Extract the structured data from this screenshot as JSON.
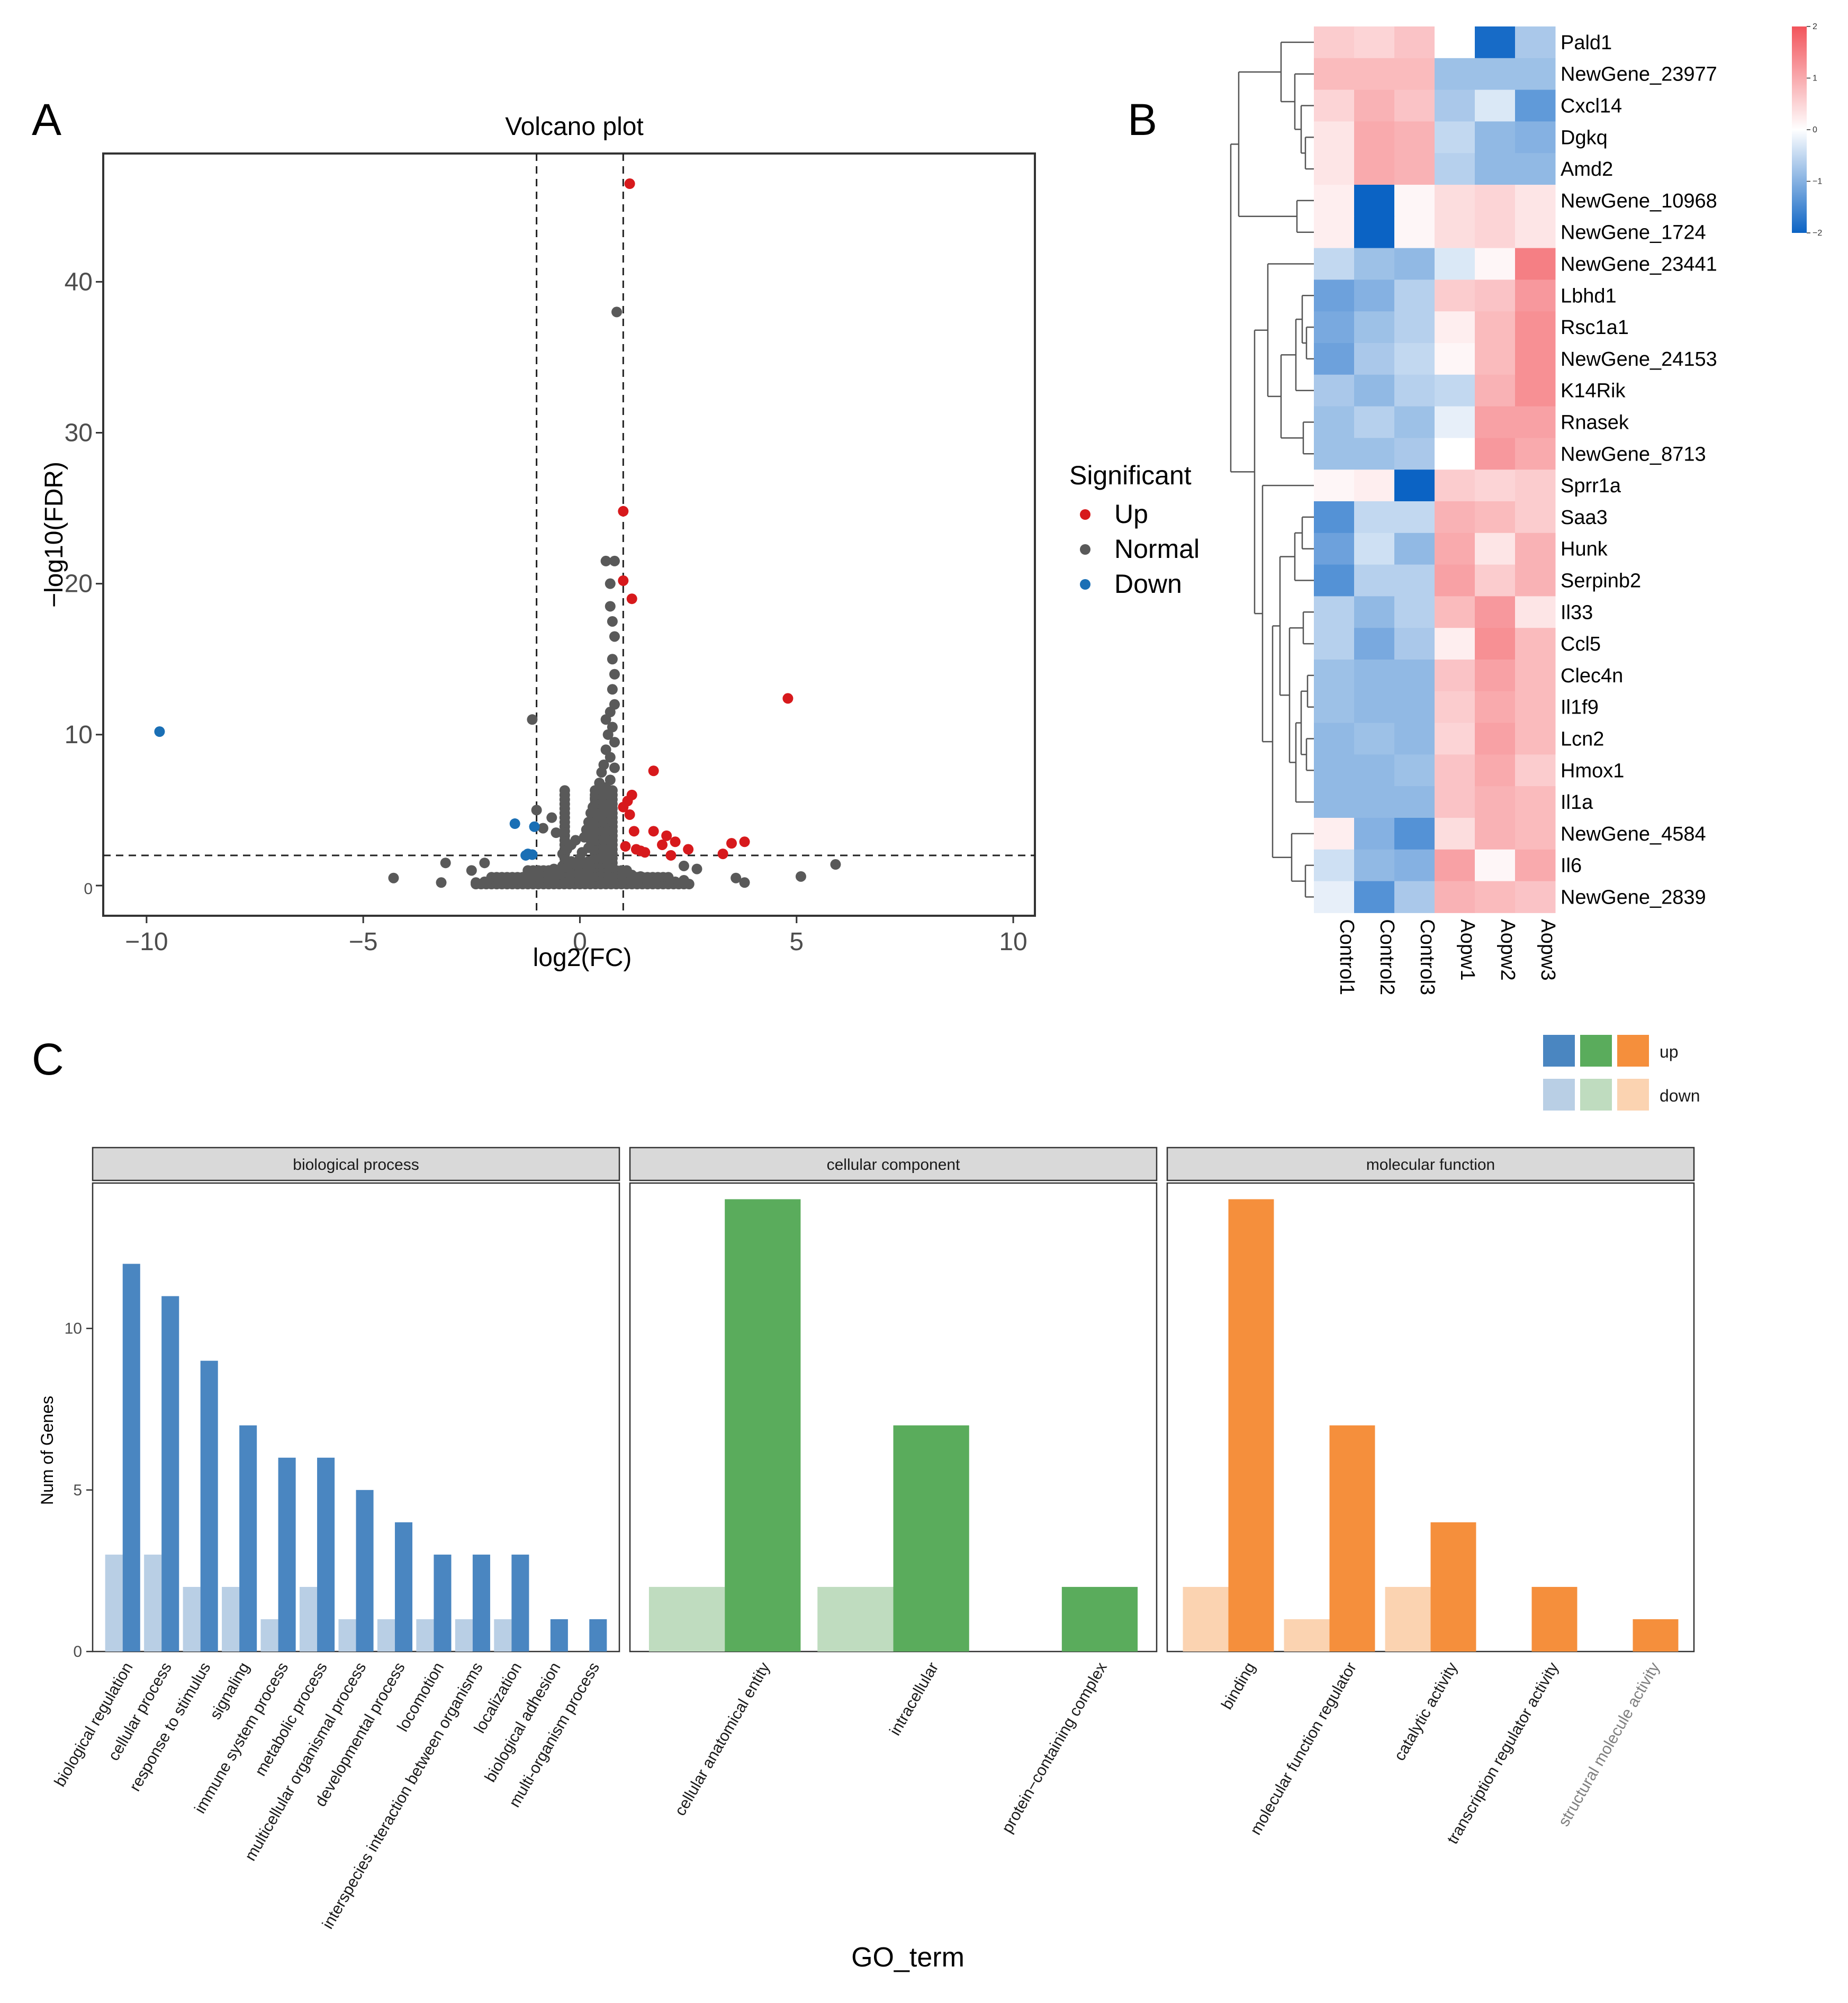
{
  "panels": {
    "a": "A",
    "b": "B",
    "c": "C"
  },
  "chart_data": [
    {
      "type": "scatter",
      "id": "volcano",
      "title": "Volcano plot",
      "xlabel": "log2(FC)",
      "ylabel": "−log10(FDR)",
      "xlim": [
        -11,
        10.5
      ],
      "ylim": [
        -2,
        48.5
      ],
      "xticks": [
        -10,
        -5,
        0,
        5,
        10
      ],
      "xtick_labels": [
        "−10",
        "−5",
        "0",
        "5",
        "10"
      ],
      "yticks": [
        0,
        10,
        20,
        30,
        40
      ],
      "ytick_labels": [
        "0",
        "10",
        "20",
        "30",
        "40"
      ],
      "vlines": [
        -1,
        1
      ],
      "hline": 2,
      "legend": {
        "title": "Significant",
        "position": "right",
        "entries": [
          {
            "label": "Up",
            "color": "#d7191c"
          },
          {
            "label": "Normal",
            "color": "#595959"
          },
          {
            "label": "Down",
            "color": "#1a6fb5"
          }
        ]
      },
      "series": [
        {
          "name": "Up",
          "color": "#d7191c",
          "points": [
            [
              1.15,
              46.5
            ],
            [
              1.0,
              24.8
            ],
            [
              1.0,
              20.2
            ],
            [
              1.2,
              19.0
            ],
            [
              4.8,
              12.4
            ],
            [
              1.7,
              7.6
            ],
            [
              1.2,
              6.0
            ],
            [
              1.1,
              5.6
            ],
            [
              1.0,
              5.2
            ],
            [
              1.15,
              4.7
            ],
            [
              1.25,
              3.6
            ],
            [
              1.7,
              3.6
            ],
            [
              2.0,
              3.3
            ],
            [
              2.2,
              2.9
            ],
            [
              2.5,
              2.4
            ],
            [
              1.9,
              2.7
            ],
            [
              3.5,
              2.8
            ],
            [
              3.8,
              2.9
            ],
            [
              1.3,
              2.4
            ],
            [
              1.5,
              2.2
            ],
            [
              3.3,
              2.1
            ],
            [
              2.1,
              2.0
            ],
            [
              1.05,
              2.6
            ],
            [
              1.4,
              2.3
            ]
          ]
        },
        {
          "name": "Normal",
          "color": "#595959",
          "points": [
            [
              0.85,
              38.0
            ],
            [
              0.6,
              21.5
            ],
            [
              0.8,
              21.5
            ],
            [
              0.7,
              20.0
            ],
            [
              0.7,
              18.5
            ],
            [
              0.75,
              17.5
            ],
            [
              0.8,
              16.5
            ],
            [
              0.75,
              15.0
            ],
            [
              0.8,
              14.0
            ],
            [
              0.75,
              13.0
            ],
            [
              0.8,
              12.0
            ],
            [
              0.7,
              11.5
            ],
            [
              0.6,
              11.0
            ],
            [
              0.75,
              10.5
            ],
            [
              0.65,
              10.0
            ],
            [
              0.8,
              9.5
            ],
            [
              0.6,
              9.0
            ],
            [
              0.7,
              8.5
            ],
            [
              0.55,
              8.0
            ],
            [
              0.8,
              7.8
            ],
            [
              0.5,
              7.5
            ],
            [
              0.7,
              7.0
            ],
            [
              0.45,
              6.8
            ],
            [
              0.6,
              6.5
            ],
            [
              0.4,
              6.2
            ],
            [
              0.55,
              6.0
            ],
            [
              0.35,
              5.8
            ],
            [
              0.5,
              5.5
            ],
            [
              0.3,
              5.2
            ],
            [
              0.45,
              5.0
            ],
            [
              0.25,
              4.8
            ],
            [
              0.4,
              4.5
            ],
            [
              0.2,
              4.2
            ],
            [
              0.35,
              4.0
            ],
            [
              0.15,
              3.7
            ],
            [
              0.3,
              3.5
            ],
            [
              0.1,
              3.2
            ],
            [
              0.25,
              3.0
            ],
            [
              -0.1,
              3.0
            ],
            [
              -0.2,
              2.7
            ],
            [
              0.2,
              2.5
            ],
            [
              -0.3,
              2.4
            ],
            [
              0.05,
              2.2
            ],
            [
              -0.4,
              2.1
            ],
            [
              -1.1,
              11.0
            ],
            [
              -1.0,
              5.0
            ],
            [
              -0.65,
              4.5
            ],
            [
              -0.85,
              3.8
            ],
            [
              -0.55,
              3.5
            ],
            [
              0.0,
              1.8
            ],
            [
              0.2,
              1.6
            ],
            [
              0.4,
              1.4
            ],
            [
              0.6,
              1.2
            ],
            [
              0.8,
              1.0
            ],
            [
              1.0,
              0.9
            ],
            [
              1.2,
              0.7
            ],
            [
              1.4,
              0.6
            ],
            [
              1.6,
              0.5
            ],
            [
              1.8,
              0.4
            ],
            [
              2.0,
              0.3
            ],
            [
              2.2,
              0.25
            ],
            [
              2.4,
              0.35
            ],
            [
              -0.2,
              1.6
            ],
            [
              -0.4,
              1.3
            ],
            [
              -0.6,
              1.1
            ],
            [
              -0.8,
              0.9
            ],
            [
              -1.0,
              0.7
            ],
            [
              -1.2,
              0.6
            ],
            [
              -1.4,
              0.5
            ],
            [
              -1.6,
              0.4
            ],
            [
              -1.8,
              0.3
            ],
            [
              -2.0,
              0.3
            ],
            [
              -2.2,
              0.25
            ],
            [
              -2.4,
              0.2
            ],
            [
              0.1,
              0.4
            ],
            [
              0.3,
              0.3
            ],
            [
              0.5,
              0.2
            ],
            [
              -0.1,
              0.5
            ],
            [
              -0.3,
              0.3
            ],
            [
              -0.5,
              0.2
            ],
            [
              -4.3,
              0.5
            ],
            [
              -3.1,
              1.5
            ],
            [
              -3.2,
              0.2
            ],
            [
              -2.5,
              1.0
            ],
            [
              -2.2,
              1.5
            ],
            [
              2.4,
              1.3
            ],
            [
              2.7,
              1.1
            ],
            [
              3.6,
              0.5
            ],
            [
              3.8,
              0.2
            ],
            [
              5.1,
              0.6
            ],
            [
              5.9,
              1.4
            ]
          ]
        },
        {
          "name": "Down",
          "color": "#1a6fb5",
          "points": [
            [
              -9.7,
              10.2
            ],
            [
              -1.5,
              4.1
            ],
            [
              -1.05,
              3.9
            ],
            [
              -1.2,
              2.1
            ],
            [
              -1.25,
              2.0
            ],
            [
              -1.1,
              2.05
            ]
          ]
        }
      ]
    },
    {
      "type": "heatmap",
      "id": "heatmap",
      "rows": [
        "Pald1",
        "NewGene_23977",
        "Cxcl14",
        "Dgkq",
        "Amd2",
        "NewGene_10968",
        "NewGene_1724",
        "NewGene_23441",
        "Lbhd1",
        "Rsc1a1",
        "NewGene_24153",
        "K14Rik",
        "Rnasek",
        "NewGene_8713",
        "Sprr1a",
        "Saa3",
        "Hunk",
        "Serpinb2",
        "Il33",
        "Ccl5",
        "Clec4n",
        "Il1f9",
        "Lcn2",
        "Hmox1",
        "Il1a",
        "NewGene_4584",
        "Il6",
        "NewGene_2839"
      ],
      "columns": [
        "Control1",
        "Control2",
        "Control3",
        "Aopw1",
        "Aopw2",
        "Aopw3"
      ],
      "values": [
        [
          0.6,
          0.5,
          0.7,
          0.0,
          -1.9,
          -0.7
        ],
        [
          0.8,
          0.8,
          0.8,
          -0.8,
          -0.8,
          -0.8
        ],
        [
          0.5,
          0.9,
          0.7,
          -0.7,
          -0.3,
          -1.3
        ],
        [
          0.3,
          1.0,
          0.9,
          -0.5,
          -0.9,
          -1.0
        ],
        [
          0.3,
          1.0,
          0.9,
          -0.6,
          -0.9,
          -0.9
        ],
        [
          0.2,
          -2.0,
          0.1,
          0.4,
          0.5,
          0.3
        ],
        [
          0.2,
          -2.0,
          0.1,
          0.4,
          0.5,
          0.3
        ],
        [
          -0.5,
          -0.8,
          -0.9,
          -0.3,
          0.1,
          1.5
        ],
        [
          -1.2,
          -1.0,
          -0.6,
          0.6,
          0.7,
          1.2
        ],
        [
          -1.1,
          -0.8,
          -0.6,
          0.2,
          0.8,
          1.3
        ],
        [
          -1.2,
          -0.7,
          -0.5,
          0.1,
          0.8,
          1.3
        ],
        [
          -0.7,
          -0.9,
          -0.6,
          -0.5,
          0.9,
          1.3
        ],
        [
          -0.8,
          -0.6,
          -0.8,
          -0.2,
          1.1,
          1.1
        ],
        [
          -0.8,
          -0.8,
          -0.7,
          0.0,
          1.2,
          1.0
        ],
        [
          0.1,
          0.2,
          -2.0,
          0.6,
          0.5,
          0.6
        ],
        [
          -1.4,
          -0.5,
          -0.5,
          0.9,
          0.8,
          0.6
        ],
        [
          -1.2,
          -0.4,
          -0.9,
          1.0,
          0.3,
          0.9
        ],
        [
          -1.4,
          -0.6,
          -0.6,
          1.1,
          0.6,
          0.9
        ],
        [
          -0.6,
          -0.9,
          -0.6,
          0.8,
          1.2,
          0.3
        ],
        [
          -0.6,
          -1.1,
          -0.7,
          0.2,
          1.3,
          0.8
        ],
        [
          -0.8,
          -0.9,
          -0.9,
          0.7,
          1.1,
          0.8
        ],
        [
          -0.8,
          -0.9,
          -0.9,
          0.6,
          1.0,
          0.8
        ],
        [
          -0.9,
          -0.8,
          -0.9,
          0.5,
          1.1,
          0.8
        ],
        [
          -0.9,
          -0.9,
          -0.8,
          0.7,
          1.0,
          0.6
        ],
        [
          -0.9,
          -0.9,
          -0.9,
          0.7,
          0.9,
          0.8
        ],
        [
          0.2,
          -1.0,
          -1.4,
          0.4,
          0.9,
          0.8
        ],
        [
          -0.4,
          -0.9,
          -1.0,
          1.1,
          0.1,
          1.0
        ],
        [
          -0.2,
          -1.4,
          -0.7,
          0.9,
          0.8,
          0.7
        ]
      ],
      "colorbar": {
        "range": [
          -2,
          2
        ],
        "ticks": [
          2,
          1,
          0,
          -1,
          -2
        ],
        "tick_labels": [
          "2",
          "1",
          "0",
          "−1",
          "−2"
        ],
        "low_color": "#0b63c4",
        "mid_color": "#ffffff",
        "high_color": "#f2545b"
      }
    },
    {
      "type": "bar",
      "id": "go-bars",
      "xlabel": "GO_term",
      "ylabel": "Num of Genes",
      "ylim": [
        0,
        14.5
      ],
      "yticks": [
        0,
        5,
        10
      ],
      "legend": {
        "position": "top-right",
        "entries": [
          {
            "label": "up",
            "colors": [
              "#4a86c1",
              "#5aac5c",
              "#f58f3c"
            ]
          },
          {
            "label": "down",
            "colors": [
              "#b9cfe5",
              "#bfdcbf",
              "#fbd3b1"
            ]
          }
        ]
      },
      "facets": [
        {
          "name": "biological process",
          "up_color": "#4a86c1",
          "down_color": "#b9cfe5",
          "categories": [
            "biological regulation",
            "cellular process",
            "response to stimulus",
            "signaling",
            "immune system process",
            "metabolic process",
            "multicellular organismal process",
            "developmental process",
            "locomotion",
            "interspecies interaction between organisms",
            "localization",
            "biological adhesion",
            "multi-organism process"
          ],
          "series": [
            {
              "name": "down",
              "values": [
                3,
                3,
                2,
                2,
                1,
                2,
                1,
                1,
                1,
                1,
                1,
                0,
                0
              ]
            },
            {
              "name": "up",
              "values": [
                12,
                11,
                9,
                7,
                6,
                6,
                5,
                4,
                3,
                3,
                3,
                1,
                1
              ]
            }
          ]
        },
        {
          "name": "cellular component",
          "up_color": "#5aac5c",
          "down_color": "#bfdcbf",
          "categories": [
            "cellular anatomical entity",
            "intracellular",
            "protein−containing complex"
          ],
          "series": [
            {
              "name": "down",
              "values": [
                2,
                2,
                0
              ]
            },
            {
              "name": "up",
              "values": [
                14,
                7,
                2
              ]
            }
          ]
        },
        {
          "name": "molecular function",
          "up_color": "#f58f3c",
          "down_color": "#fbd3b1",
          "categories": [
            "binding",
            "molecular function regulator",
            "catalytic activity",
            "transcription regulator activity",
            "structural molecule activity"
          ],
          "series": [
            {
              "name": "down",
              "values": [
                2,
                1,
                2,
                0,
                0
              ]
            },
            {
              "name": "up",
              "values": [
                14,
                7,
                4,
                2,
                1
              ]
            }
          ]
        }
      ]
    }
  ]
}
